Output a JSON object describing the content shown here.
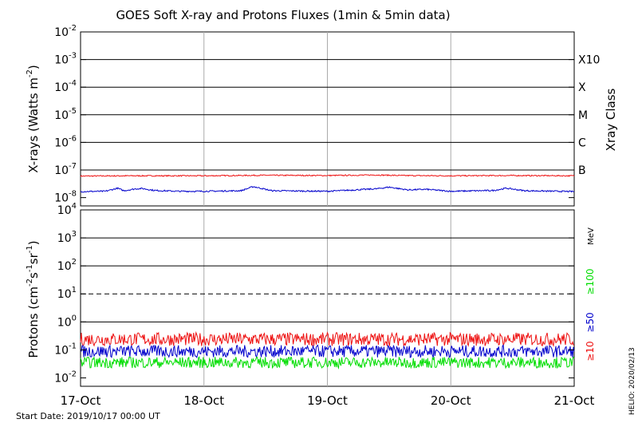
{
  "chart_data": {
    "title": "GOES Soft X-ray and Protons Fluxes   (1min & 5min data)",
    "start_date": "Start Date: 2019/10/17 00:00 UT",
    "footer_right": "HELIO: 2020/02/13",
    "x_ticks": [
      "17-Oct",
      "18-Oct",
      "19-Oct",
      "20-Oct",
      "21-Oct"
    ],
    "panels": [
      {
        "id": "xray",
        "type": "line",
        "ylabel": "X-rays (Watts m",
        "ylabel_sup": "-2",
        "ylabel_end": ")",
        "log_scale": true,
        "y_exponents": [
          -8,
          -7,
          -6,
          -5,
          -4,
          -3,
          -2
        ],
        "ylim_exp": [
          -8.3,
          -2
        ],
        "right_axis_title": "Xray Class",
        "class_labels": [
          {
            "label": "B",
            "exp": -7
          },
          {
            "label": "C",
            "exp": -6
          },
          {
            "label": "M",
            "exp": -5
          },
          {
            "label": "X",
            "exp": -4
          },
          {
            "label": "X10",
            "exp": -3
          }
        ],
        "hlines_exp": [
          -7.0,
          -6,
          -5,
          -4,
          -3
        ],
        "series": [
          {
            "color": "#ee1111",
            "days": [
              0,
              0.4,
              1.0,
              1.5,
              2.0,
              2.4,
              2.6,
              3.0,
              3.5,
              4.0
            ],
            "log_values": [
              -7.22,
              -7.21,
              -7.21,
              -7.19,
              -7.2,
              -7.18,
              -7.2,
              -7.21,
              -7.2,
              -7.21
            ],
            "noise": 0.02
          },
          {
            "color": "#0000cc",
            "days": [
              0,
              0.2,
              0.3,
              0.35,
              0.45,
              0.5,
              0.6,
              0.8,
              1.0,
              1.3,
              1.4,
              1.55,
              2.0,
              2.4,
              2.5,
              2.65,
              2.8,
              3.0,
              3.35,
              3.45,
              3.6,
              4.0
            ],
            "log_values": [
              -7.78,
              -7.77,
              -7.66,
              -7.75,
              -7.68,
              -7.67,
              -7.74,
              -7.77,
              -7.77,
              -7.75,
              -7.6,
              -7.75,
              -7.77,
              -7.68,
              -7.62,
              -7.72,
              -7.7,
              -7.77,
              -7.74,
              -7.66,
              -7.75,
              -7.78
            ],
            "noise": 0.025
          }
        ]
      },
      {
        "id": "protons",
        "type": "line",
        "ylabel": "Protons (cm",
        "ylabel_sup1": "-2",
        "ylabel_mid": "s",
        "ylabel_sup2": "-1",
        "ylabel_mid2": "sr",
        "ylabel_sup3": "-1",
        "ylabel_end": ")",
        "log_scale": true,
        "y_exponents": [
          -2,
          -1,
          0,
          1,
          2,
          3,
          4
        ],
        "ylim_exp": [
          -2.3,
          4
        ],
        "energy_unit": "MeV",
        "energy_labels": [
          {
            "label": "≥10",
            "color": "#ee1111"
          },
          {
            "label": "≥50",
            "color": "#0000cc"
          },
          {
            "label": "≥100",
            "color": "#00dd00"
          }
        ],
        "hlines_exp": [
          0,
          2,
          3
        ],
        "dashed_line_exp": 1,
        "series": [
          {
            "color": "#ee1111",
            "log_base": -0.62,
            "noise": 0.24
          },
          {
            "color": "#0000cc",
            "log_base": -1.05,
            "noise": 0.22
          },
          {
            "color": "#00dd00",
            "log_base": -1.45,
            "noise": 0.2
          }
        ]
      }
    ]
  }
}
